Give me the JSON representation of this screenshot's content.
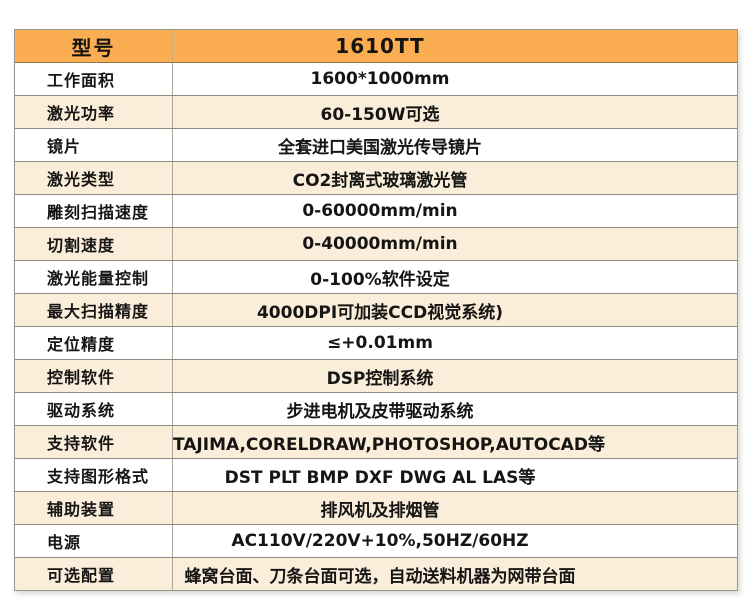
{
  "colors": {
    "header_bg": "#fbad51",
    "row_bg": "#ffffff",
    "row_alt_bg": "#faedda",
    "grid_line": "#918c82",
    "text": "#161514"
  },
  "table": {
    "header": {
      "col1": "型号",
      "col2": "1610TT"
    },
    "rows": [
      {
        "label": "工作面积",
        "value": "1600*1000mm"
      },
      {
        "label": "激光功率",
        "value": "60-150W可选"
      },
      {
        "label": "镜片",
        "value": "全套进口美国激光传导镜片"
      },
      {
        "label": "激光类型",
        "value": "CO2封离式玻璃激光管"
      },
      {
        "label": "雕刻扫描速度",
        "value": "0-60000mm/min"
      },
      {
        "label": "切割速度",
        "value": "0-40000mm/min"
      },
      {
        "label": "激光能量控制",
        "value": "0-100%软件设定"
      },
      {
        "label": "最大扫描精度",
        "value": "4000DPI可加装CCD视觉系统)"
      },
      {
        "label": "定位精度",
        "value": "≤+0.01mm"
      },
      {
        "label": "控制软件",
        "value": "DSP控制系统"
      },
      {
        "label": "驱动系统",
        "value": "步进电机及皮带驱动系统"
      },
      {
        "label": "支持软件",
        "value": "TAJIMA,CORELDRAW,PHOTOSHOP,AUTOCAD等"
      },
      {
        "label": "支持图形格式",
        "value": "DST PLT BMP DXF DWG AL LAS等"
      },
      {
        "label": "辅助装置",
        "value": "排风机及排烟管"
      },
      {
        "label": "电源",
        "value": "AC110V/220V+10%,50HZ/60HZ"
      },
      {
        "label": "可选配置",
        "value": "蜂窝台面、刀条台面可选，自动送料机器为网带台面"
      }
    ]
  }
}
